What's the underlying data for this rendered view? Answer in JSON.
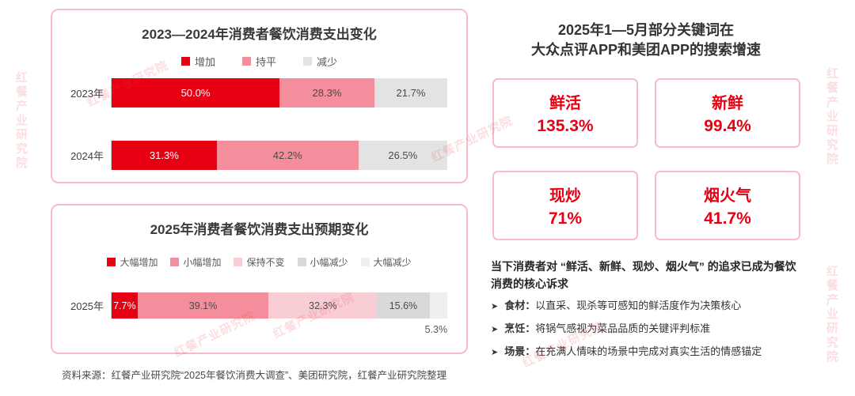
{
  "watermark": {
    "text": "红餐产业研究院"
  },
  "chart_data": [
    {
      "type": "bar",
      "stacked": true,
      "orientation": "horizontal",
      "title": "2023—2024年消费者餐饮消费支出变化",
      "categories": [
        "2023年",
        "2024年"
      ],
      "xlim": [
        0,
        100
      ],
      "unit": "%",
      "legend_position": "top",
      "grid": false,
      "series": [
        {
          "name": "增加",
          "color": "#e60012",
          "text_color": "#ffffff",
          "values": [
            50.0,
            31.3
          ],
          "labels": [
            "50.0%",
            "31.3%"
          ]
        },
        {
          "name": "持平",
          "color": "#f48e9c",
          "text_color": "#4a4a4a",
          "values": [
            28.3,
            42.2
          ],
          "labels": [
            "28.3%",
            "42.2%"
          ]
        },
        {
          "name": "减少",
          "color": "#e3e3e3",
          "text_color": "#4a4a4a",
          "values": [
            21.7,
            26.5
          ],
          "labels": [
            "21.7%",
            "26.5%"
          ]
        }
      ]
    },
    {
      "type": "bar",
      "stacked": true,
      "orientation": "horizontal",
      "title": "2025年消费者餐饮消费支出预期变化",
      "categories": [
        "2025年"
      ],
      "xlim": [
        0,
        100
      ],
      "unit": "%",
      "legend_position": "top",
      "grid": false,
      "series": [
        {
          "name": "大幅增加",
          "color": "#e60012",
          "text_color": "#ffffff",
          "values": [
            7.7
          ],
          "labels": [
            "7.7%"
          ]
        },
        {
          "name": "小幅增加",
          "color": "#f48e9c",
          "text_color": "#4a4a4a",
          "values": [
            39.1
          ],
          "labels": [
            "39.1%"
          ]
        },
        {
          "name": "保持不变",
          "color": "#f9cdd4",
          "text_color": "#4a4a4a",
          "values": [
            32.3
          ],
          "labels": [
            "32.3%"
          ]
        },
        {
          "name": "小幅减少",
          "color": "#d9d9d9",
          "text_color": "#4a4a4a",
          "values": [
            15.6
          ],
          "labels": [
            "15.6%"
          ]
        },
        {
          "name": "大幅减少",
          "color": "#efefef",
          "text_color": "#595959",
          "values": [
            5.3
          ],
          "labels": [
            "5.3%"
          ],
          "label_position": "below"
        }
      ]
    }
  ],
  "right_panel": {
    "title_lines": [
      "2025年1—5月部分关键词在",
      "大众点评APP和美团APP的搜索增速"
    ],
    "keywords": [
      {
        "label": "鲜活",
        "value": "135.3%"
      },
      {
        "label": "新鲜",
        "value": "99.4%"
      },
      {
        "label": "现炒",
        "value": "71%"
      },
      {
        "label": "烟火气",
        "value": "41.7%"
      }
    ],
    "summary": "当下消费者对 “鲜活、新鲜、现炒、烟火气” 的追求已成为餐饮消费的核心诉求",
    "bullet_marker": "➤",
    "bullets": [
      {
        "label": "食材：",
        "text": "以直采、现杀等可感知的鲜活度作为决策核心"
      },
      {
        "label": "烹饪：",
        "text": "将锅气感视为菜品品质的关键评判标准"
      },
      {
        "label": "场景：",
        "text": "在充满人情味的场景中完成对真实生活的情感锚定"
      }
    ]
  },
  "footer": {
    "source": "资料来源：红餐产业研究院“2025年餐饮消费大调查”、美团研究院，红餐产业研究院整理"
  }
}
